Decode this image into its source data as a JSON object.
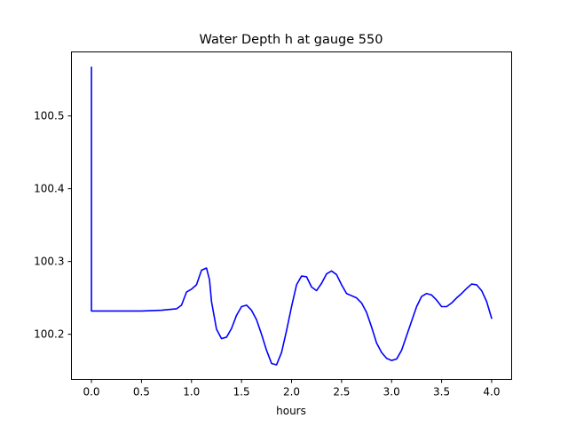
{
  "chart_data": {
    "type": "line",
    "title": "Water Depth h at gauge 550",
    "xlabel": "hours",
    "ylabel": "",
    "xlim": [
      -0.2,
      4.2
    ],
    "ylim": [
      100.138,
      100.588
    ],
    "xticks": [
      0.0,
      0.5,
      1.0,
      1.5,
      2.0,
      2.5,
      3.0,
      3.5,
      4.0
    ],
    "xtick_labels": [
      "0.0",
      "0.5",
      "1.0",
      "1.5",
      "2.0",
      "2.5",
      "3.0",
      "3.5",
      "4.0"
    ],
    "yticks": [
      100.2,
      100.3,
      100.4,
      100.5
    ],
    "ytick_labels": [
      "100.2",
      "100.3",
      "100.4",
      "100.5"
    ],
    "grid": false,
    "legend": "none",
    "series": [
      {
        "color": "#0000ff",
        "x": [
          0.0,
          0.0,
          0.005,
          0.2,
          0.5,
          0.7,
          0.85,
          0.9,
          0.95,
          1.0,
          1.05,
          1.1,
          1.15,
          1.18,
          1.2,
          1.25,
          1.3,
          1.35,
          1.4,
          1.45,
          1.5,
          1.55,
          1.6,
          1.65,
          1.7,
          1.75,
          1.8,
          1.85,
          1.9,
          1.95,
          2.0,
          2.05,
          2.1,
          2.15,
          2.2,
          2.25,
          2.3,
          2.35,
          2.4,
          2.45,
          2.5,
          2.55,
          2.6,
          2.65,
          2.7,
          2.75,
          2.8,
          2.85,
          2.9,
          2.95,
          3.0,
          3.05,
          3.1,
          3.15,
          3.2,
          3.25,
          3.3,
          3.35,
          3.4,
          3.45,
          3.5,
          3.55,
          3.6,
          3.65,
          3.7,
          3.75,
          3.8,
          3.85,
          3.9,
          3.95,
          4.0
        ],
        "y": [
          100.567,
          100.232,
          100.232,
          100.232,
          100.232,
          100.233,
          100.235,
          100.24,
          100.258,
          100.262,
          100.268,
          100.288,
          100.291,
          100.275,
          100.245,
          100.207,
          100.194,
          100.196,
          100.208,
          100.226,
          100.238,
          100.24,
          100.233,
          100.22,
          100.2,
          100.178,
          100.16,
          100.158,
          100.175,
          100.205,
          100.238,
          100.268,
          100.28,
          100.279,
          100.265,
          100.26,
          100.27,
          100.283,
          100.287,
          100.282,
          100.268,
          100.256,
          100.253,
          100.25,
          100.243,
          100.23,
          100.21,
          100.188,
          100.175,
          100.167,
          100.164,
          100.166,
          100.178,
          100.198,
          100.218,
          100.238,
          100.252,
          100.256,
          100.254,
          100.247,
          100.238,
          100.238,
          100.243,
          100.25,
          100.256,
          100.263,
          100.269,
          100.268,
          100.26,
          100.245,
          100.222
        ]
      }
    ]
  }
}
